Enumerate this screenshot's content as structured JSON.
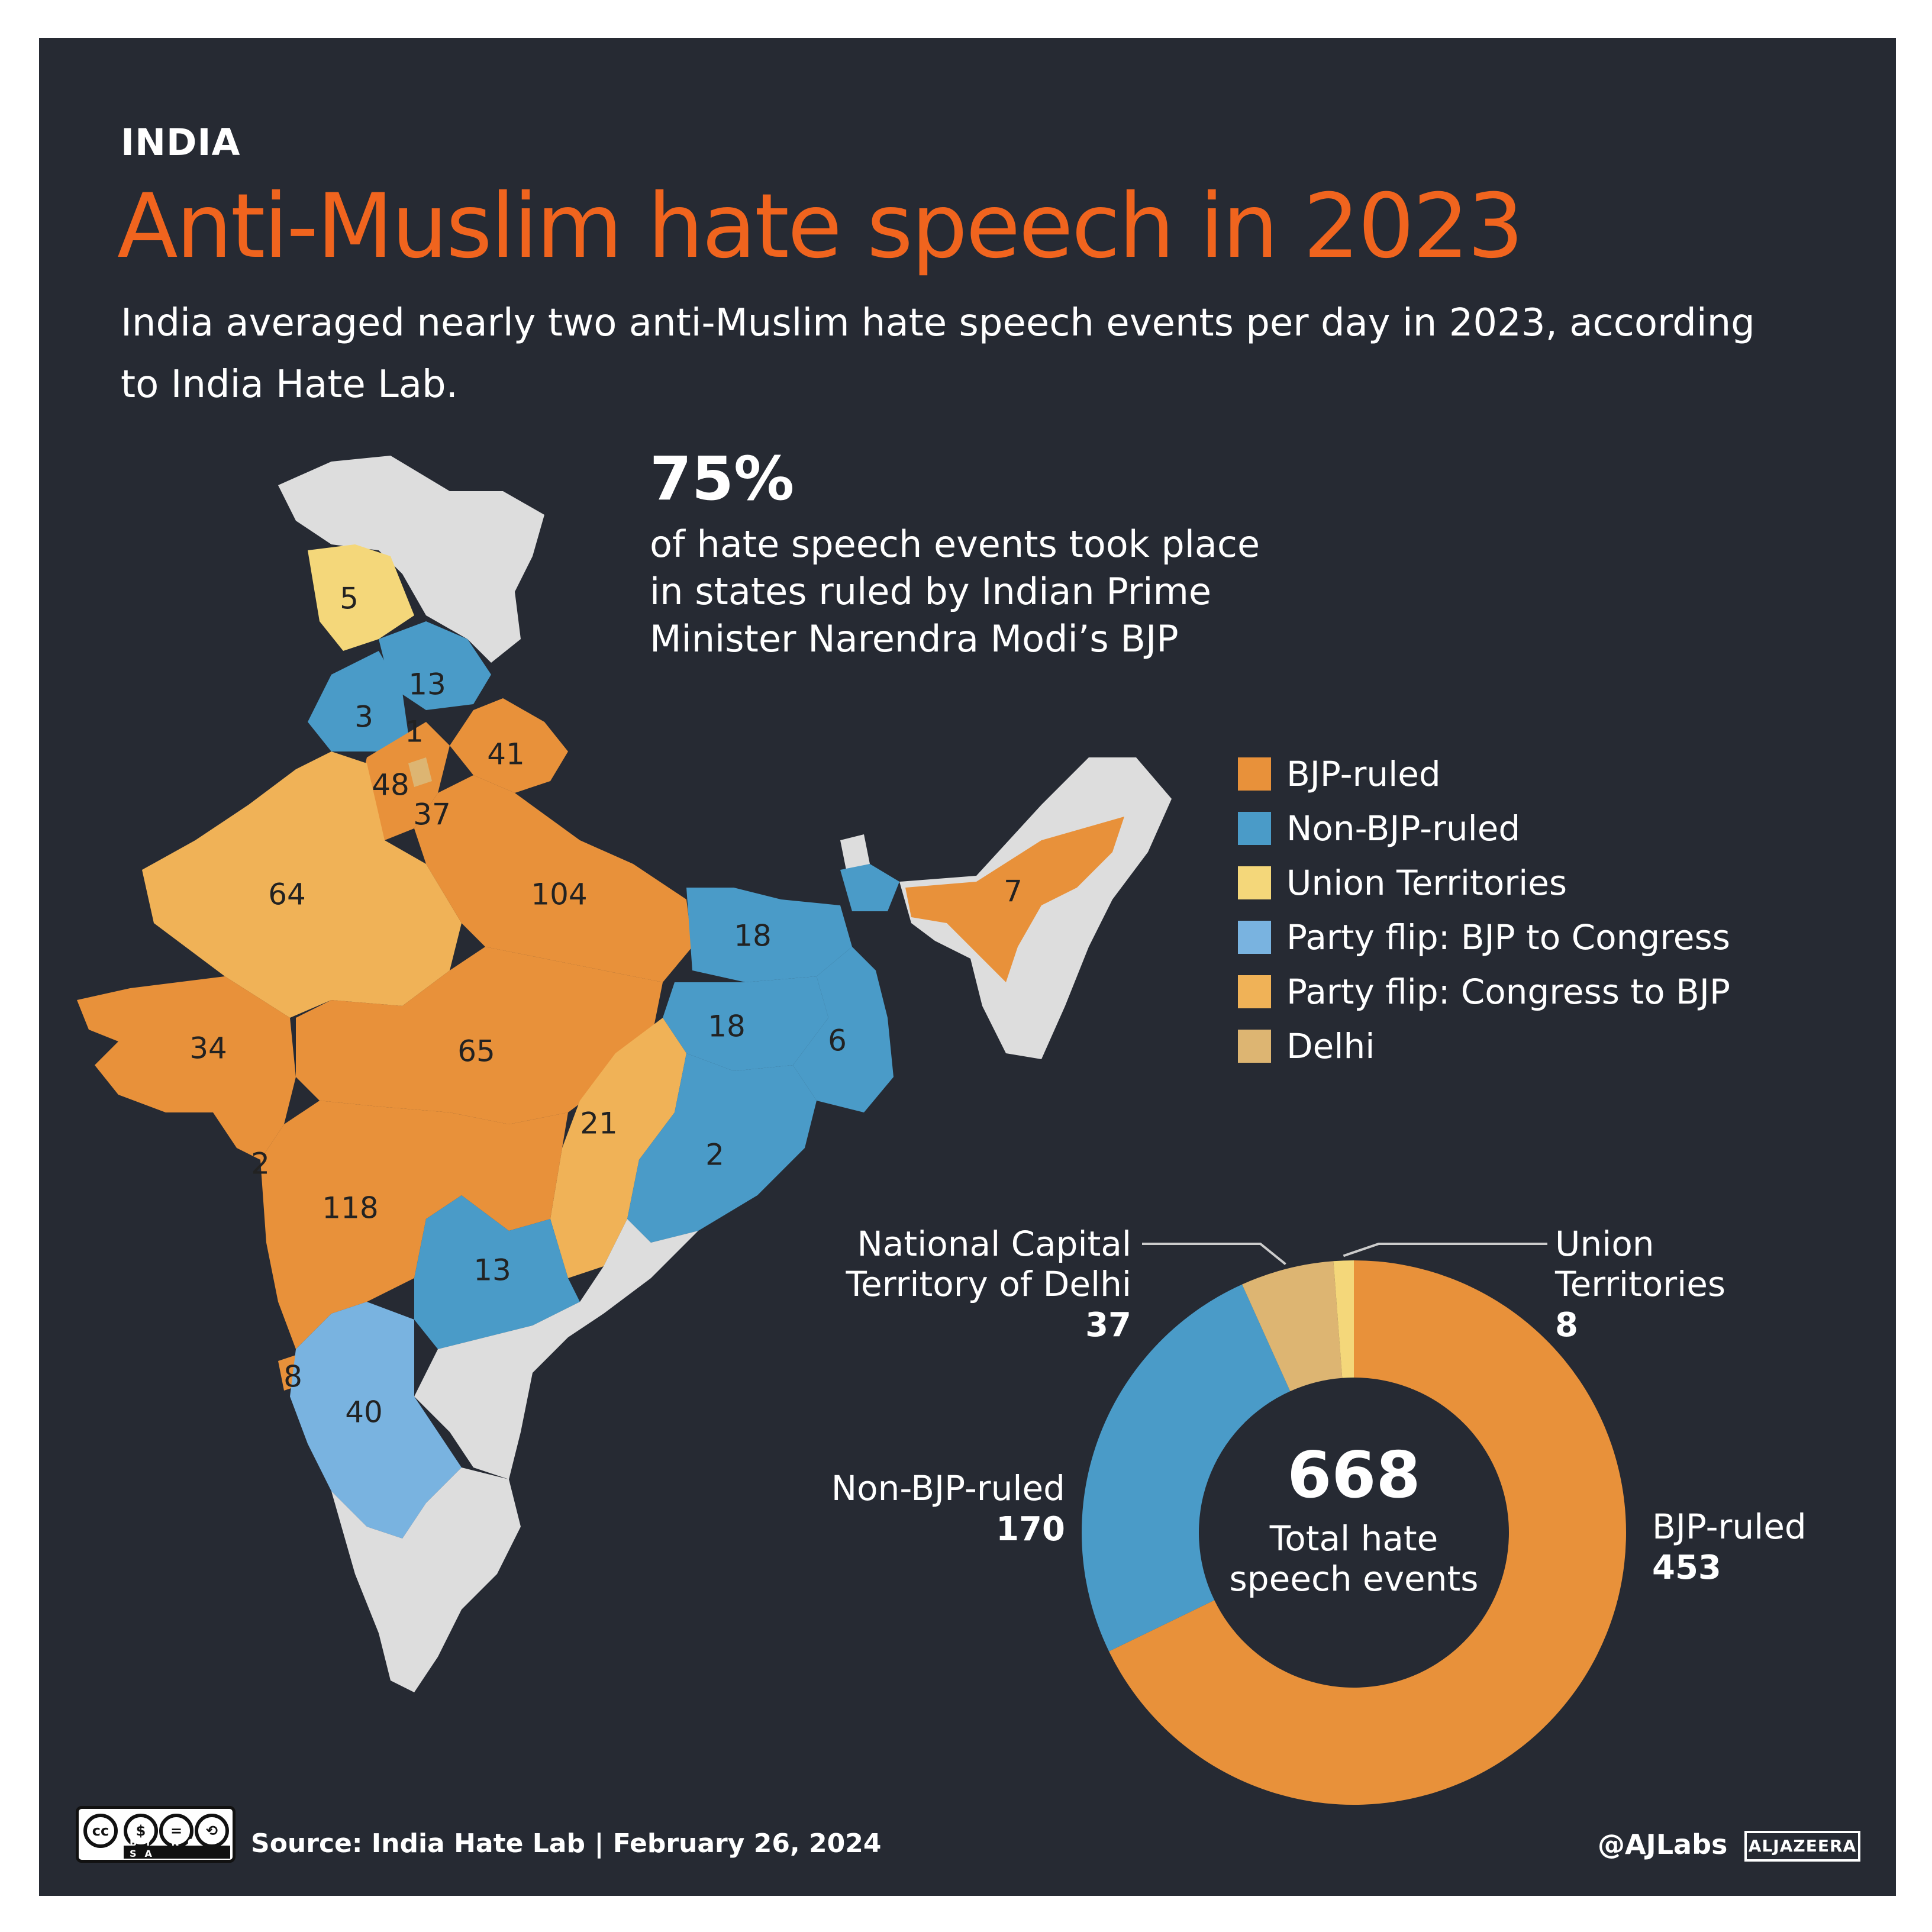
{
  "header": {
    "kicker": "INDIA",
    "title": "Anti-Muslim hate speech in 2023",
    "subtitle": "India averaged nearly two anti-Muslim hate speech events per day in 2023, according to India Hate Lab."
  },
  "stat": {
    "value": "75%",
    "description": "of hate speech events took place in states ruled by Indian Prime Minister Narendra Modi’s BJP"
  },
  "colors": {
    "bjp": "#e8913a",
    "non_bjp": "#4a9bc8",
    "ut": "#f4d77a",
    "flip_bjp_to_congress": "#79b3e0",
    "flip_congress_to_bjp": "#f0b257",
    "delhi": "#ddb572",
    "other": "#dddddd",
    "background": "#262a33",
    "title": "#f0641e"
  },
  "legend": [
    {
      "label": "BJP-ruled",
      "color": "#e8913a"
    },
    {
      "label": "Non-BJP-ruled",
      "color": "#4a9bc8"
    },
    {
      "label": "Union Territories",
      "color": "#f4d77a"
    },
    {
      "label": "Party flip: BJP to Congress",
      "color": "#79b3e0"
    },
    {
      "label": "Party flip: Congress to BJP",
      "color": "#f0b257"
    },
    {
      "label": "Delhi",
      "color": "#ddb572"
    }
  ],
  "map_values": [
    "5",
    "13",
    "3",
    "1",
    "41",
    "48",
    "37",
    "64",
    "104",
    "18",
    "7",
    "34",
    "65",
    "18",
    "6",
    "21",
    "2",
    "2",
    "118",
    "13",
    "8",
    "40"
  ],
  "chart_data": {
    "type": "pie",
    "center_value": "668",
    "center_label": "Total hate speech events",
    "slices": [
      {
        "name": "BJP-ruled",
        "value": 453,
        "color": "#e8913a"
      },
      {
        "name": "Non-BJP-ruled",
        "value": 170,
        "color": "#4a9bc8"
      },
      {
        "name": "National Capital Territory of Delhi",
        "value": 37,
        "color": "#ddb572"
      },
      {
        "name": "Union Territories",
        "value": 8,
        "color": "#f4d77a"
      }
    ]
  },
  "footer": {
    "source": "Source: India Hate Lab  |  February 26, 2024",
    "handle": "@AJLabs",
    "logo_text": "ALJAZEERA",
    "license_icons": [
      "cc",
      "$",
      "=",
      "⟲"
    ],
    "license_tags": "BY NC SA"
  }
}
